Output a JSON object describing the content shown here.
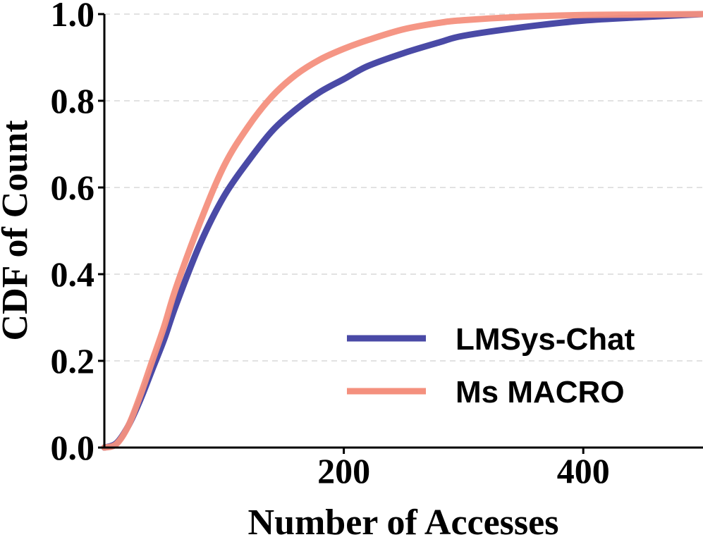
{
  "chart_data": {
    "type": "line",
    "title": "",
    "xlabel": "Number of Accesses",
    "ylabel": "CDF of Count",
    "xlim": [
      0,
      500
    ],
    "ylim": [
      0,
      1.0
    ],
    "x_ticks": [
      200,
      400
    ],
    "x_tick_labels": [
      "200",
      "400"
    ],
    "y_ticks": [
      0.0,
      0.2,
      0.4,
      0.6,
      0.8,
      1.0
    ],
    "y_tick_labels": [
      "0.0",
      "0.2",
      "0.4",
      "0.6",
      "0.8",
      "1.0"
    ],
    "grid": "horizontal dashed",
    "legend_position": "lower-right",
    "series": [
      {
        "name": "LMSys-Chat",
        "color": "#4a4aa6",
        "x": [
          0,
          10,
          20,
          30,
          40,
          50,
          60,
          80,
          100,
          120,
          140,
          160,
          180,
          200,
          220,
          250,
          280,
          300,
          350,
          400,
          450,
          500
        ],
        "y": [
          0.0,
          0.01,
          0.05,
          0.11,
          0.18,
          0.25,
          0.33,
          0.47,
          0.58,
          0.66,
          0.73,
          0.78,
          0.82,
          0.85,
          0.88,
          0.91,
          0.935,
          0.95,
          0.97,
          0.985,
          0.993,
          1.0
        ]
      },
      {
        "name": "Ms MACRO",
        "color": "#f4907e",
        "x": [
          0,
          10,
          20,
          30,
          40,
          50,
          60,
          80,
          100,
          120,
          140,
          160,
          180,
          200,
          220,
          250,
          280,
          300,
          350,
          400,
          450,
          500
        ],
        "y": [
          0.0,
          0.008,
          0.05,
          0.12,
          0.2,
          0.28,
          0.37,
          0.52,
          0.65,
          0.74,
          0.81,
          0.86,
          0.895,
          0.92,
          0.94,
          0.965,
          0.98,
          0.986,
          0.994,
          0.998,
          0.999,
          1.0
        ]
      }
    ]
  }
}
